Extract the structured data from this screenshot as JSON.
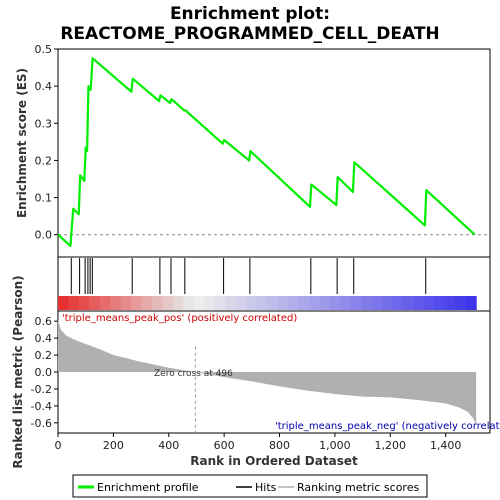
{
  "chart_data": {
    "type": "line",
    "title_line1": "Enrichment plot:",
    "title_line2": "REACTOME_PROGRAMMED_CELL_DEATH",
    "xlabel": "Rank in Ordered Dataset",
    "ylabel_top": "Enrichment score (ES)",
    "ylabel_bottom": "Ranked list metric (Pearson)",
    "x_range": [
      0,
      1560
    ],
    "x_ticks": [
      0,
      200,
      400,
      600,
      800,
      1000,
      1200,
      1400
    ],
    "x_tick_labels": [
      "0",
      "200",
      "400",
      "600",
      "800",
      "1,000",
      "1,200",
      "1,400"
    ],
    "es_ylim": [
      -0.06,
      0.5
    ],
    "es_yticks": [
      0.0,
      0.1,
      0.2,
      0.3,
      0.4,
      0.5
    ],
    "es_ytick_labels": [
      "0.0",
      "0.1",
      "0.2",
      "0.3",
      "0.4",
      "0.5"
    ],
    "metric_ylim": [
      -0.72,
      0.72
    ],
    "metric_yticks": [
      -0.6,
      -0.4,
      -0.2,
      0.0,
      0.2,
      0.4,
      0.6
    ],
    "metric_ytick_labels": [
      "-0.6",
      "-0.4",
      "-0.2",
      "0.0",
      "0.2",
      "0.4",
      "0.6"
    ],
    "n_genes": 1510,
    "es_profile": {
      "x": [
        0,
        45,
        55,
        75,
        80,
        95,
        100,
        105,
        110,
        118,
        125,
        265,
        270,
        365,
        370,
        405,
        410,
        455,
        460,
        595,
        600,
        690,
        695,
        910,
        915,
        1005,
        1010,
        1065,
        1070,
        1325,
        1330,
        1505
      ],
      "y": [
        0.0,
        -0.03,
        0.07,
        0.055,
        0.16,
        0.145,
        0.235,
        0.225,
        0.4,
        0.39,
        0.475,
        0.385,
        0.42,
        0.36,
        0.375,
        0.355,
        0.365,
        0.335,
        0.335,
        0.245,
        0.255,
        0.2,
        0.225,
        0.075,
        0.135,
        0.08,
        0.155,
        0.115,
        0.195,
        0.025,
        0.12,
        0.0
      ]
    },
    "hits": [
      48,
      78,
      98,
      108,
      116,
      124,
      268,
      368,
      408,
      458,
      598,
      693,
      913,
      1008,
      1068,
      1328
    ],
    "metric_profile": {
      "x": [
        0,
        10,
        30,
        60,
        100,
        150,
        200,
        300,
        400,
        496,
        600,
        700,
        800,
        900,
        1000,
        1100,
        1200,
        1300,
        1400,
        1450,
        1480,
        1500,
        1510
      ],
      "y": [
        0.62,
        0.5,
        0.43,
        0.38,
        0.33,
        0.27,
        0.2,
        0.12,
        0.05,
        0.0,
        -0.06,
        -0.11,
        -0.17,
        -0.22,
        -0.26,
        -0.29,
        -0.3,
        -0.33,
        -0.37,
        -0.42,
        -0.47,
        -0.55,
        -0.63
      ]
    },
    "zero_cross_x": 496,
    "zero_cross_label": "Zero cross at 496",
    "pos_label": "'triple_means_peak_pos' (positively correlated)",
    "neg_label": "'triple_means_peak_neg' (negatively correlated)",
    "colors": {
      "es_line": "#00ee00",
      "hit": "#000000",
      "metric_fill": "#b0b0b0",
      "zero_cross_line": "#999999"
    },
    "legend": {
      "placement": "bottom",
      "items": [
        "Enrichment profile",
        "Hits",
        "Ranking metric scores"
      ]
    }
  }
}
